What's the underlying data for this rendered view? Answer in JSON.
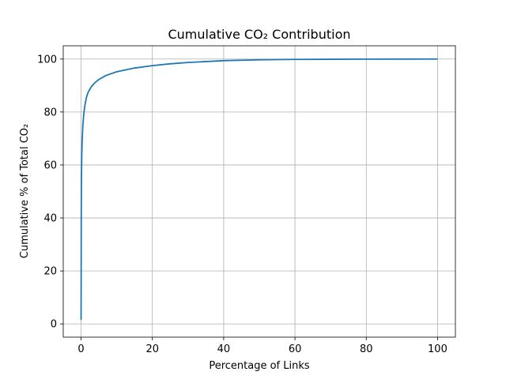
{
  "chart_data": {
    "type": "line",
    "title": "Cumulative CO₂ Contribution",
    "xlabel": "Percentage of Links",
    "ylabel": "Cumulative % of Total CO₂",
    "xlim": [
      -5,
      105
    ],
    "ylim": [
      -5,
      105
    ],
    "xticks": [
      0,
      20,
      40,
      60,
      80,
      100
    ],
    "yticks": [
      0,
      20,
      40,
      60,
      80,
      100
    ],
    "grid": true,
    "series": [
      {
        "color": "#1f77b4",
        "x": [
          0,
          0.05,
          0.1,
          0.2,
          0.3,
          0.5,
          0.75,
          1,
          1.5,
          2,
          3,
          4,
          5,
          7,
          10,
          15,
          20,
          25,
          30,
          40,
          50,
          60,
          70,
          80,
          90,
          100
        ],
        "y": [
          1.5,
          40,
          55,
          64,
          69,
          75,
          79,
          82,
          85.5,
          87.5,
          89.8,
          91.2,
          92.3,
          93.8,
          95.2,
          96.6,
          97.5,
          98.2,
          98.7,
          99.4,
          99.7,
          99.85,
          99.92,
          99.97,
          99.99,
          100
        ]
      }
    ]
  }
}
